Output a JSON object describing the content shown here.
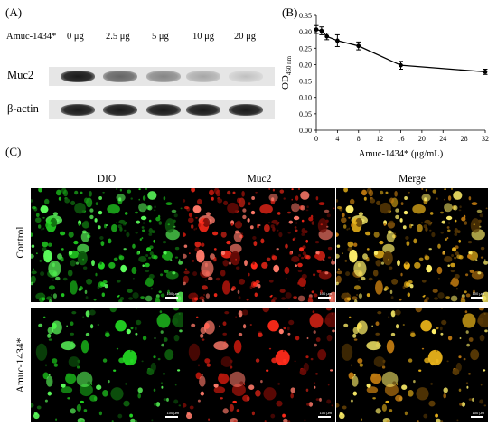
{
  "panel_a": {
    "label": "(A)",
    "treatment_label": "Amuc-1434*",
    "doses": [
      "0 μg",
      "2.5 μg",
      "5 μg",
      "10 μg",
      "20 μg"
    ],
    "rows": [
      "Muc2",
      "β-actin"
    ],
    "muc2_intensity": [
      0.95,
      0.6,
      0.45,
      0.3,
      0.18
    ],
    "actin_intensity": [
      0.95,
      0.95,
      0.95,
      0.95,
      0.95
    ]
  },
  "panel_b": {
    "label": "(B)"
  },
  "panel_c": {
    "label": "(C)",
    "columns": [
      "DIO",
      "Muc2",
      "Merge"
    ],
    "rows": [
      "Control",
      "Amuc-1434*"
    ],
    "scalebar_text": "100 μm"
  },
  "colors": {
    "dio": "#1fd11f",
    "muc2": "#ff2a1a",
    "merge": "#e8b21a",
    "line": "#000000"
  },
  "chart_data": {
    "type": "line",
    "title": "",
    "xlabel": "Amuc-1434* (μg/mL)",
    "ylabel_main": "OD",
    "ylabel_sub": "450 nm",
    "x": [
      0,
      1,
      2,
      4,
      8,
      16,
      32
    ],
    "series": [
      {
        "values": [
          0.307,
          0.303,
          0.286,
          0.273,
          0.257,
          0.198,
          0.178
        ],
        "error": [
          0.012,
          0.012,
          0.01,
          0.018,
          0.012,
          0.012,
          0.008
        ]
      }
    ],
    "xlim": [
      0,
      32
    ],
    "ylim": [
      0,
      0.35
    ],
    "xticks": [
      0,
      4,
      8,
      12,
      16,
      20,
      24,
      28,
      32
    ],
    "yticks": [
      "0.00",
      "0.05",
      "0.10",
      "0.15",
      "0.20",
      "0.25",
      "0.30",
      "0.35"
    ],
    "grid": false,
    "legend": "none"
  }
}
